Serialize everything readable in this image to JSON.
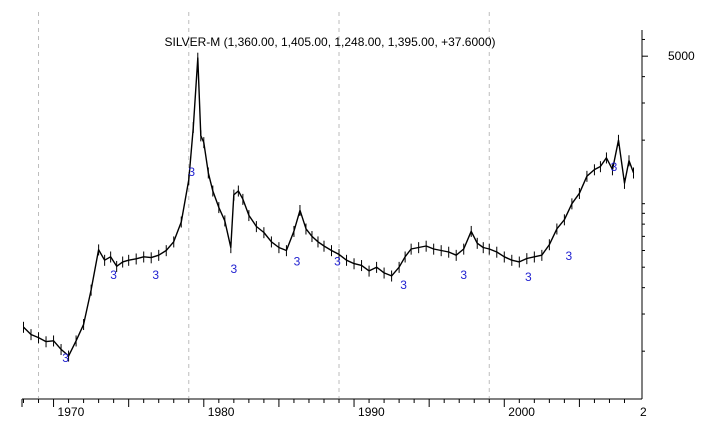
{
  "chart_data": {
    "type": "line",
    "title": "SILVER-M (1,360.00, 1,405.00, 1,248.00, 1,395.00, +37.6000)",
    "y_scale": "log",
    "y_tick_labels": [
      "5000"
    ],
    "x_tick_labels": [
      "1970",
      "1980",
      "1990",
      "2000",
      "2"
    ],
    "grid": "vertical dashed",
    "xlim": [
      1967.9,
      2008.9
    ],
    "ylim": [
      120,
      6800
    ],
    "series": [
      {
        "x": [
          1968.0,
          1968.5,
          1969.0,
          1969.5,
          1970.0,
          1970.5,
          1971.0,
          1971.5,
          1972.0,
          1972.5,
          1973.0,
          1973.4,
          1973.8,
          1974.2,
          1974.6,
          1975.0,
          1975.5,
          1976.0,
          1976.5,
          1977.0,
          1977.5,
          1978.0,
          1978.5,
          1979.0,
          1979.3,
          1979.6,
          1979.8,
          1980.0,
          1980.3,
          1980.6,
          1981.0,
          1981.4,
          1981.8,
          1982.0,
          1982.3,
          1982.6,
          1983.0,
          1983.5,
          1984.0,
          1984.5,
          1985.0,
          1985.5,
          1986.0,
          1986.4,
          1986.8,
          1987.2,
          1987.6,
          1988.0,
          1988.5,
          1989.0,
          1989.5,
          1990.0,
          1990.5,
          1991.0,
          1991.5,
          1992.0,
          1992.5,
          1993.0,
          1993.4,
          1993.8,
          1994.3,
          1994.8,
          1995.3,
          1995.8,
          1996.3,
          1996.8,
          1997.3,
          1997.8,
          1998.2,
          1998.6,
          1999.0,
          1999.5,
          2000.0,
          2000.5,
          2001.0,
          2001.5,
          2002.0,
          2002.5,
          2003.0,
          2003.5,
          2004.0,
          2004.5,
          2005.0,
          2005.5,
          2006.0,
          2006.4,
          2006.8,
          2007.2,
          2007.6,
          2008.0,
          2008.3,
          2008.6
        ],
        "values": [
          260,
          240,
          232,
          222,
          224,
          204,
          190,
          224,
          268,
          390,
          605,
          540,
          560,
          505,
          530,
          540,
          548,
          560,
          555,
          570,
          600,
          660,
          820,
          1300,
          2300,
          4900,
          2100,
          1950,
          1400,
          1150,
          960,
          830,
          620,
          1100,
          1150,
          1050,
          880,
          780,
          730,
          660,
          620,
          600,
          740,
          930,
          760,
          700,
          660,
          630,
          600,
          575,
          540,
          520,
          510,
          480,
          500,
          470,
          455,
          500,
          560,
          610,
          620,
          630,
          610,
          600,
          590,
          570,
          610,
          740,
          650,
          620,
          610,
          590,
          560,
          540,
          530,
          550,
          560,
          570,
          640,
          760,
          840,
          1000,
          1120,
          1350,
          1450,
          1500,
          1650,
          1450,
          2000,
          1250,
          1600,
          1400
        ]
      }
    ],
    "annotations": [
      {
        "text": "3",
        "x": 1970.8,
        "y": 178
      },
      {
        "text": "3",
        "x": 1974.0,
        "y": 440
      },
      {
        "text": "3",
        "x": 1976.8,
        "y": 440
      },
      {
        "text": "3",
        "x": 1979.2,
        "y": 1350
      },
      {
        "text": "3",
        "x": 1982.0,
        "y": 470
      },
      {
        "text": "3",
        "x": 1986.2,
        "y": 510
      },
      {
        "text": "3",
        "x": 1988.9,
        "y": 510
      },
      {
        "text": "3",
        "x": 1993.3,
        "y": 395
      },
      {
        "text": "3",
        "x": 1997.3,
        "y": 440
      },
      {
        "text": "3",
        "x": 2001.6,
        "y": 430
      },
      {
        "text": "3",
        "x": 2004.3,
        "y": 540
      },
      {
        "text": "3",
        "x": 2007.3,
        "y": 1430
      }
    ]
  }
}
